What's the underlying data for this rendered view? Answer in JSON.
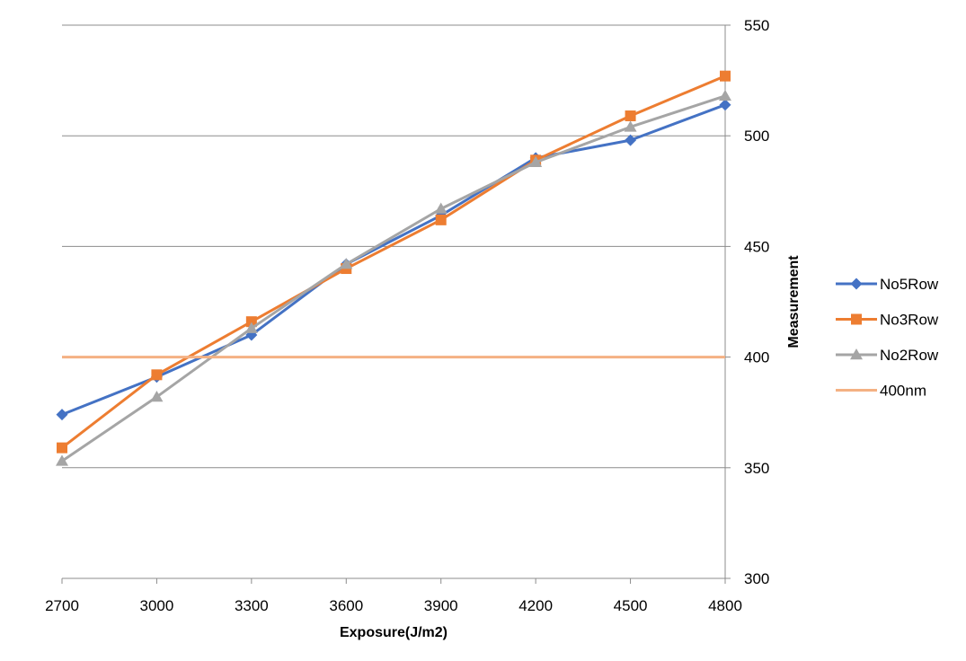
{
  "chart_data": {
    "type": "line",
    "xlabel": "Exposure(J/m2)",
    "ylabel": "Measurement",
    "x": [
      2700,
      3000,
      3300,
      3600,
      3900,
      4200,
      4500,
      4800
    ],
    "xlim": [
      2700,
      4800
    ],
    "ylim": [
      300,
      550
    ],
    "yticks": [
      300,
      350,
      400,
      450,
      500,
      550
    ],
    "yaxis_position": "right",
    "grid": "horizontal",
    "legend_position": "right",
    "series": [
      {
        "name": "No5Row",
        "color": "#4472c4",
        "marker": "diamond",
        "values": [
          374,
          391,
          410,
          442,
          464,
          490,
          498,
          514
        ]
      },
      {
        "name": "No3Row",
        "color": "#ed7d31",
        "marker": "square",
        "values": [
          359,
          392,
          416,
          440,
          462,
          489,
          509,
          527
        ]
      },
      {
        "name": "No2Row",
        "color": "#a5a5a5",
        "marker": "triangle",
        "values": [
          353,
          382,
          413,
          442,
          467,
          488,
          504,
          518
        ]
      },
      {
        "name": "400nm",
        "color": "#f4b183",
        "marker": "none",
        "values": [
          400,
          400,
          400,
          400,
          400,
          400,
          400,
          400
        ]
      }
    ]
  }
}
